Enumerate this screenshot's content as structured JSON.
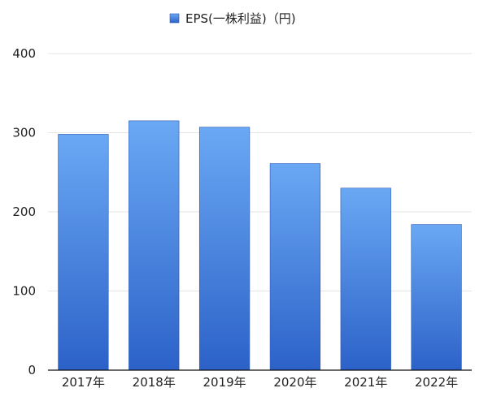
{
  "chart_data": {
    "type": "bar",
    "categories": [
      "2017年",
      "2018年",
      "2019年",
      "2020年",
      "2021年",
      "2022年"
    ],
    "series": [
      {
        "name": "EPS(一株利益)（円)",
        "values": [
          298,
          315,
          307,
          261,
          230,
          184
        ]
      }
    ],
    "y_ticks": [
      "0",
      "100",
      "200",
      "300",
      "400"
    ],
    "ylim": [
      0,
      400
    ],
    "grid": true,
    "legend": "top-center",
    "colors": {
      "bar_top": "#6aa8f4",
      "bar_bottom": "#2c62c8",
      "bar_edge": "#2857b8"
    }
  }
}
